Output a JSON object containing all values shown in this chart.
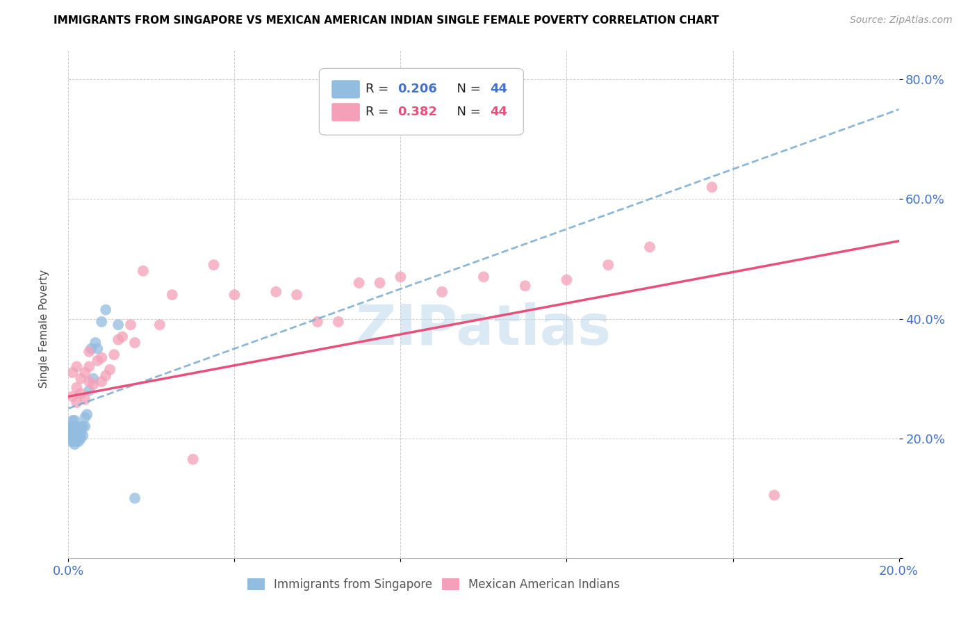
{
  "title": "IMMIGRANTS FROM SINGAPORE VS MEXICAN AMERICAN INDIAN SINGLE FEMALE POVERTY CORRELATION CHART",
  "source": "Source: ZipAtlas.com",
  "ylabel": "Single Female Poverty",
  "xlim": [
    0.0,
    0.2
  ],
  "ylim": [
    0.0,
    0.85
  ],
  "y_ticks": [
    0.0,
    0.2,
    0.4,
    0.6,
    0.8
  ],
  "y_tick_labels": [
    "",
    "20.0%",
    "40.0%",
    "60.0%",
    "80.0%"
  ],
  "blue_color": "#92bce0",
  "pink_color": "#f4a0b8",
  "blue_line_color": "#7aabcf",
  "pink_line_color": "#e8507a",
  "watermark": "ZIPatlas",
  "blue_scatter_x": [
    0.0005,
    0.0005,
    0.0008,
    0.0008,
    0.001,
    0.001,
    0.001,
    0.001,
    0.0012,
    0.0012,
    0.0012,
    0.0015,
    0.0015,
    0.0015,
    0.0015,
    0.0015,
    0.0018,
    0.0018,
    0.002,
    0.002,
    0.002,
    0.0022,
    0.0022,
    0.0025,
    0.0025,
    0.0028,
    0.0028,
    0.003,
    0.003,
    0.003,
    0.0035,
    0.0035,
    0.004,
    0.004,
    0.0045,
    0.005,
    0.0055,
    0.006,
    0.0065,
    0.007,
    0.008,
    0.009,
    0.012,
    0.016
  ],
  "blue_scatter_y": [
    0.205,
    0.22,
    0.195,
    0.215,
    0.2,
    0.21,
    0.22,
    0.23,
    0.195,
    0.205,
    0.215,
    0.19,
    0.2,
    0.21,
    0.22,
    0.23,
    0.2,
    0.215,
    0.195,
    0.205,
    0.215,
    0.2,
    0.21,
    0.195,
    0.21,
    0.205,
    0.215,
    0.2,
    0.21,
    0.22,
    0.205,
    0.22,
    0.22,
    0.235,
    0.24,
    0.28,
    0.35,
    0.3,
    0.36,
    0.35,
    0.395,
    0.415,
    0.39,
    0.1
  ],
  "pink_scatter_x": [
    0.001,
    0.001,
    0.002,
    0.002,
    0.002,
    0.003,
    0.003,
    0.004,
    0.004,
    0.005,
    0.005,
    0.005,
    0.006,
    0.007,
    0.008,
    0.008,
    0.009,
    0.01,
    0.011,
    0.012,
    0.013,
    0.015,
    0.016,
    0.018,
    0.022,
    0.025,
    0.03,
    0.035,
    0.04,
    0.05,
    0.055,
    0.06,
    0.065,
    0.07,
    0.075,
    0.08,
    0.09,
    0.1,
    0.11,
    0.12,
    0.13,
    0.14,
    0.155,
    0.17
  ],
  "pink_scatter_y": [
    0.27,
    0.31,
    0.26,
    0.285,
    0.32,
    0.275,
    0.3,
    0.265,
    0.31,
    0.295,
    0.32,
    0.345,
    0.29,
    0.33,
    0.295,
    0.335,
    0.305,
    0.315,
    0.34,
    0.365,
    0.37,
    0.39,
    0.36,
    0.48,
    0.39,
    0.44,
    0.165,
    0.49,
    0.44,
    0.445,
    0.44,
    0.395,
    0.395,
    0.46,
    0.46,
    0.47,
    0.445,
    0.47,
    0.455,
    0.465,
    0.49,
    0.52,
    0.62,
    0.105
  ]
}
